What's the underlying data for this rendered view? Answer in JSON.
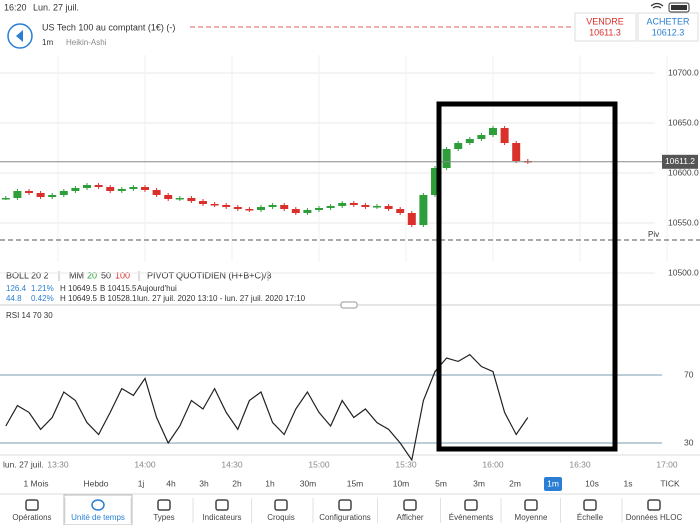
{
  "status_bar": {
    "time": "16:20",
    "date": "Lun. 27 juil."
  },
  "header": {
    "instrument": "US Tech 100 au comptant (1€) (-)",
    "interval": "1m",
    "chart_style": "Heikin-Ashi"
  },
  "sell": {
    "label": "VENDRE",
    "price": "10611.3"
  },
  "buy": {
    "label": "ACHETER",
    "price": "10612.3"
  },
  "indicators": {
    "boll": "BOLL",
    "boll_params": "20 2",
    "mm": "MM",
    "mm_params": [
      "20",
      "50",
      "100"
    ],
    "pivot": "PIVOT",
    "pivot_params": "QUOTIDIEN (H+B+C)/3",
    "rows": [
      [
        "126.4",
        "1.21%",
        "H 10649.5",
        "B 10415.5",
        "Aujourd'hui"
      ],
      [
        "44.8",
        "0.42%",
        "H 10649.5",
        "B 10528.1",
        "lun. 27 juil. 2020 13:10 - lun. 27 juil. 2020 17:10"
      ]
    ]
  },
  "chart_data": [
    {
      "type": "candlestick",
      "x": [
        "13:12",
        "13:16",
        "13:20",
        "13:24",
        "13:28",
        "13:32",
        "13:36",
        "13:40",
        "13:44",
        "13:48",
        "13:52",
        "13:56",
        "14:00",
        "14:04",
        "14:08",
        "14:12",
        "14:16",
        "14:20",
        "14:24",
        "14:28",
        "14:32",
        "14:36",
        "14:40",
        "14:44",
        "14:48",
        "14:52",
        "14:56",
        "15:00",
        "15:04",
        "15:08",
        "15:12",
        "15:16",
        "15:20",
        "15:24",
        "15:28",
        "15:32",
        "15:36",
        "15:40",
        "15:44",
        "15:48",
        "15:52",
        "15:56",
        "16:00",
        "16:04",
        "16:08",
        "16:12"
      ],
      "values": [
        10575,
        10582,
        10580,
        10576,
        10578,
        10582,
        10585,
        10588,
        10586,
        10582,
        10584,
        10586,
        10583,
        10578,
        10574,
        10575,
        10572,
        10569,
        10568,
        10566,
        10564,
        10563,
        10566,
        10568,
        10564,
        10560,
        10563,
        10565,
        10567,
        10570,
        10568,
        10566,
        10567,
        10564,
        10560,
        10548,
        10578,
        10605,
        10624,
        10630,
        10634,
        10638,
        10645,
        10630,
        10612,
        10611.2
      ],
      "up_color": "#2e9e3a",
      "down_color": "#d9302c",
      "xlim": [
        "13:10",
        "17:10"
      ],
      "ylim": [
        10511,
        10733
      ],
      "yticks": [
        {
          "value": 10700,
          "label": "10700.0"
        },
        {
          "value": 10650,
          "label": "10650.0"
        },
        {
          "value": 10600,
          "label": "10600.0"
        },
        {
          "value": 10550,
          "label": "10550.0"
        },
        {
          "value": 10500,
          "label": "10500.0"
        }
      ],
      "last_price": 10611.2,
      "pivot": {
        "value": 10533,
        "label": "Piv"
      },
      "grid": true
    },
    {
      "type": "line",
      "title": "RSI 14 70 30",
      "x": [
        "13:12",
        "13:16",
        "13:20",
        "13:24",
        "13:28",
        "13:32",
        "13:36",
        "13:40",
        "13:44",
        "13:48",
        "13:52",
        "13:56",
        "14:00",
        "14:04",
        "14:08",
        "14:12",
        "14:16",
        "14:20",
        "14:24",
        "14:28",
        "14:32",
        "14:36",
        "14:40",
        "14:44",
        "14:48",
        "14:52",
        "14:56",
        "15:00",
        "15:04",
        "15:08",
        "15:12",
        "15:16",
        "15:20",
        "15:24",
        "15:28",
        "15:32",
        "15:36",
        "15:40",
        "15:44",
        "15:48",
        "15:52",
        "15:56",
        "16:00",
        "16:04",
        "16:08",
        "16:12"
      ],
      "values": [
        40,
        52,
        48,
        38,
        45,
        60,
        55,
        42,
        35,
        48,
        62,
        58,
        68,
        45,
        30,
        40,
        55,
        50,
        62,
        48,
        38,
        55,
        60,
        42,
        35,
        50,
        60,
        48,
        40,
        55,
        45,
        50,
        42,
        38,
        30,
        20,
        55,
        72,
        80,
        78,
        82,
        75,
        72,
        48,
        35,
        45
      ],
      "color": "#222222",
      "xlim": [
        "13:10",
        "17:10"
      ],
      "xticks": [
        "13:30",
        "14:00",
        "14:30",
        "15:00",
        "15:30",
        "16:00",
        "16:30",
        "17:00"
      ],
      "date_label": "lun. 27 juil.",
      "ylim": [
        26,
        100
      ],
      "yticks": [
        70,
        30
      ]
    }
  ],
  "timeframes": [
    "1 Mois",
    "Hebdo",
    "1j",
    "4h",
    "3h",
    "2h",
    "1h",
    "30m",
    "15m",
    "10m",
    "5m",
    "3m",
    "2m",
    "1m",
    "10s",
    "1s",
    "TICK"
  ],
  "selected_timeframe": 13,
  "tabs": [
    "Opérations",
    "Unité de temps",
    "Types",
    "Indicateurs",
    "Croquis",
    "Configurations",
    "Afficher",
    "Événements",
    "Moyenne",
    "Échelle",
    "Données HLOC"
  ],
  "selected_tab": 1
}
